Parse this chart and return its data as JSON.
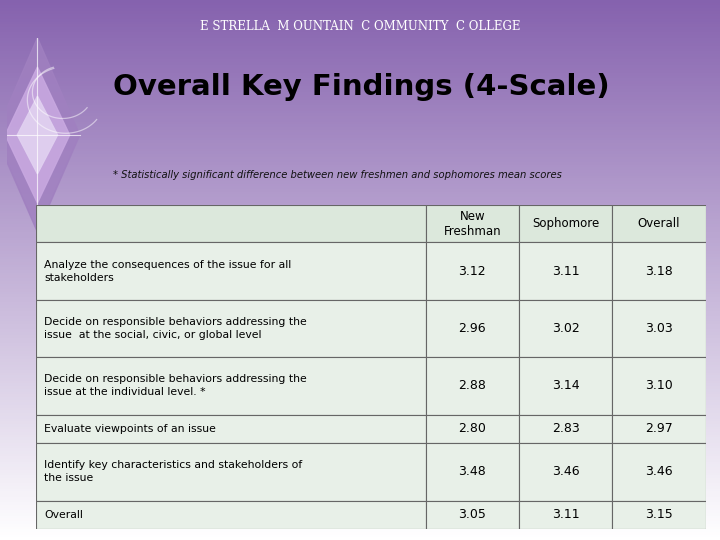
{
  "title": "Overall Key Findings (4-Scale)",
  "subtitle": "* Statistically significant difference between new freshmen and sophomores mean scores",
  "college_name": "E STRELLA  M OUNTAIN  C OMMUNITY  C OLLEGE",
  "col_headers": [
    "New\nFreshman",
    "Sophomore",
    "Overall"
  ],
  "row_labels": [
    "Analyze the consequences of the issue for all\nstakeholders",
    "Decide on responsible behaviors addressing the\nissue  at the social, civic, or global level",
    "Decide on responsible behaviors addressing the\nissue at the individual level. *",
    "Evaluate viewpoints of an issue",
    "Identify key characteristics and stakeholders of\nthe issue",
    "Overall"
  ],
  "data": [
    [
      3.12,
      3.11,
      3.18
    ],
    [
      2.96,
      3.02,
      3.03
    ],
    [
      2.88,
      3.14,
      3.1
    ],
    [
      2.8,
      2.83,
      2.97
    ],
    [
      3.48,
      3.46,
      3.46
    ],
    [
      3.05,
      3.11,
      3.15
    ]
  ],
  "table_bg": "#e8f0e8",
  "header_bg": "#dce8dc",
  "row_heights_raw": [
    2,
    2,
    2,
    1,
    2,
    1
  ]
}
